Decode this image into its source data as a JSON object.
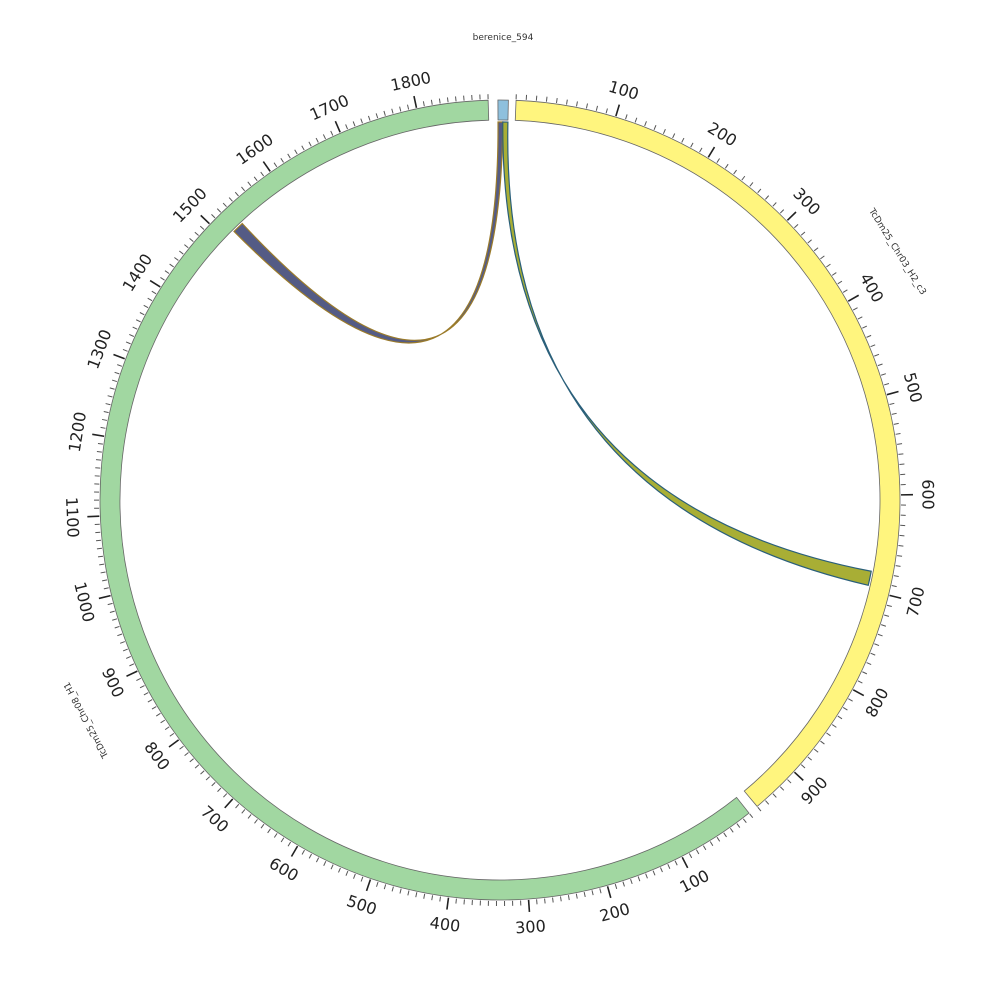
{
  "title": "berenice_594",
  "segments": [
    {
      "id": "berenice",
      "name": "",
      "length": 25,
      "color": "#8ec0dd",
      "show_ticks": false
    },
    {
      "id": "chr03",
      "name": "TcDm25_Chr03_H2_c3",
      "length": 950,
      "color": "#fff57e",
      "show_ticks": true
    },
    {
      "id": "chr08",
      "name": "TcDm25_Chr08_H1",
      "length": 1890,
      "color": "#a1d7a1",
      "show_ticks": true
    }
  ],
  "ticks": {
    "minor_step": 10,
    "major_step": 100,
    "chr03_labels": [
      "100",
      "200",
      "300",
      "400",
      "500",
      "600",
      "700",
      "800",
      "900"
    ],
    "chr08_labels": [
      "100",
      "200",
      "300",
      "400",
      "500",
      "600",
      "700",
      "800",
      "900",
      "1000",
      "1100",
      "1200",
      "1300",
      "1400",
      "1500",
      "1600",
      "1700",
      "1800"
    ]
  },
  "links": [
    {
      "from_segment": "berenice",
      "from_range": [
        0,
        12
      ],
      "to_segment": "chr08",
      "to_range": [
        1515,
        1530
      ],
      "color": "#4b527e",
      "edge_color": "#9b7b2a"
    },
    {
      "from_segment": "berenice",
      "from_range": [
        12,
        25
      ],
      "to_segment": "chr03",
      "to_range": [
        680,
        695
      ],
      "color": "#a3aa2a",
      "edge_color": "#2a5f7a"
    }
  ]
}
